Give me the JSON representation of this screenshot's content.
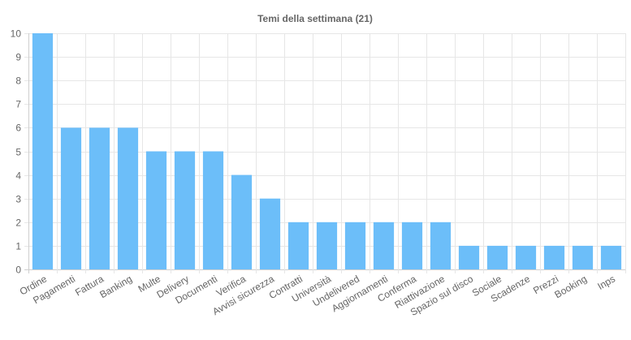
{
  "chart_data": {
    "type": "bar",
    "title": "Temi della settimana (21)",
    "xlabel": "",
    "ylabel": "",
    "ylim": [
      0,
      10
    ],
    "yticks": [
      "0",
      "1",
      "2",
      "3",
      "4",
      "5",
      "6",
      "7",
      "8",
      "9",
      "10"
    ],
    "grid": true,
    "legend": "none",
    "bar_color": "#6cbef9",
    "categories": [
      "Ordine",
      "Pagamenti",
      "Fattura",
      "Banking",
      "Multe",
      "Delivery",
      "Documenti",
      "Verifica",
      "Avvisi sicurezza",
      "Contratti",
      "Università",
      "Undelivered",
      "Aggiornamenti",
      "Conferma",
      "Riattivazione",
      "Spazio sul disco",
      "Sociale",
      "Scadenze",
      "Prezzi",
      "Booking",
      "Inps"
    ],
    "values": [
      10,
      6,
      6,
      6,
      5,
      5,
      5,
      4,
      3,
      2,
      2,
      2,
      2,
      2,
      2,
      1,
      1,
      1,
      1,
      1,
      1
    ]
  }
}
